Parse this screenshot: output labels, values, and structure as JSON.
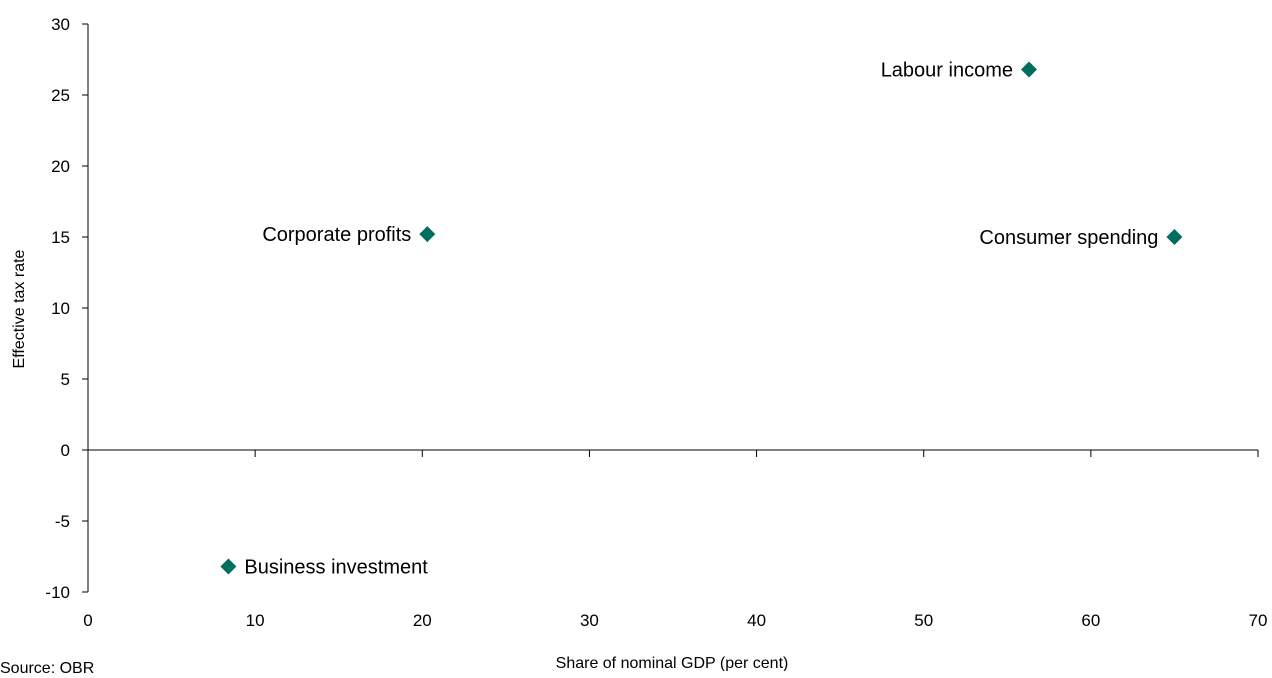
{
  "chart_data": {
    "type": "scatter",
    "xlabel": "Share of nominal GDP (per cent)",
    "ylabel": "Effective tax rate",
    "xlim": [
      0,
      70
    ],
    "ylim": [
      -10,
      30
    ],
    "x_ticks": [
      0,
      10,
      20,
      30,
      40,
      50,
      60,
      70
    ],
    "y_ticks": [
      -10,
      -5,
      0,
      5,
      10,
      15,
      20,
      25,
      30
    ],
    "grid": false,
    "marker": "diamond",
    "marker_color": "#006E5E",
    "points": [
      {
        "label": "Labour income",
        "x": 56.3,
        "y": 26.8,
        "label_side": "left"
      },
      {
        "label": "Corporate profits",
        "x": 20.3,
        "y": 15.2,
        "label_side": "left"
      },
      {
        "label": "Consumer spending",
        "x": 65.0,
        "y": 15.0,
        "label_side": "left"
      },
      {
        "label": "Business investment",
        "x": 8.4,
        "y": -8.2,
        "label_side": "right"
      }
    ]
  },
  "source": "Source: OBR"
}
